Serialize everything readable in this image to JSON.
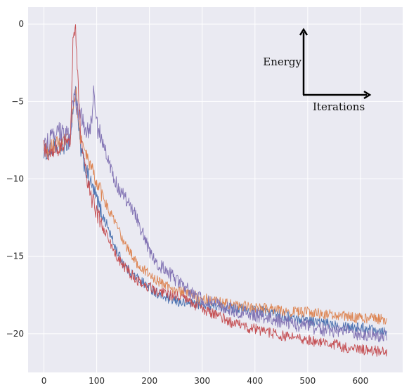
{
  "chart_data": {
    "type": "line",
    "title": "",
    "xlabel": "",
    "ylabel": "",
    "xlim": [
      -30,
      680
    ],
    "ylim": [
      -22.5,
      1.1
    ],
    "xticks": [
      0,
      100,
      200,
      300,
      400,
      500,
      600
    ],
    "yticks": [
      0,
      -5,
      -10,
      -15,
      -20
    ],
    "xtick_labels": [
      "0",
      "100",
      "200",
      "300",
      "400",
      "500",
      "600"
    ],
    "ytick_labels": [
      "0",
      "−5",
      "−10",
      "−15",
      "−20"
    ],
    "grid": true,
    "background": "#eaeaf2",
    "line_width": 0.9,
    "annotations": {
      "vertical_label": "Energy",
      "horizontal_label": "Iterations"
    },
    "series": [
      {
        "color": "#4c72b0",
        "noise": 0.35,
        "x": [
          0,
          10,
          20,
          30,
          40,
          50,
          55,
          60,
          65,
          70,
          80,
          90,
          100,
          110,
          120,
          130,
          140,
          150,
          160,
          180,
          200,
          220,
          240,
          260,
          280,
          300,
          325,
          350,
          375,
          400,
          425,
          450,
          475,
          500,
          525,
          550,
          575,
          600,
          625,
          650
        ],
        "y": [
          -8.2,
          -8.3,
          -7.9,
          -8.1,
          -7.8,
          -7.5,
          -5.6,
          -3.8,
          -6.5,
          -8.2,
          -9.5,
          -10.4,
          -11.3,
          -12.3,
          -13.0,
          -14.0,
          -14.8,
          -15.4,
          -15.9,
          -16.5,
          -17.0,
          -17.5,
          -17.8,
          -18.0,
          -18.0,
          -18.1,
          -18.2,
          -18.3,
          -18.4,
          -18.5,
          -18.6,
          -18.8,
          -19.0,
          -19.1,
          -19.3,
          -19.4,
          -19.5,
          -19.6,
          -19.7,
          -19.8
        ]
      },
      {
        "color": "#dd8452",
        "noise": 0.35,
        "x": [
          0,
          10,
          20,
          30,
          40,
          50,
          55,
          60,
          65,
          70,
          80,
          90,
          100,
          110,
          120,
          130,
          140,
          150,
          160,
          180,
          200,
          220,
          240,
          260,
          280,
          300,
          325,
          350,
          375,
          400,
          425,
          450,
          475,
          500,
          525,
          550,
          575,
          600,
          625,
          650
        ],
        "y": [
          -8.0,
          -8.2,
          -7.7,
          -7.9,
          -7.6,
          -7.4,
          -5.2,
          -4.2,
          -6.0,
          -7.5,
          -8.5,
          -9.3,
          -10.3,
          -11.0,
          -11.8,
          -12.5,
          -13.2,
          -14.0,
          -14.6,
          -15.6,
          -16.2,
          -16.7,
          -17.0,
          -17.3,
          -17.5,
          -17.7,
          -17.9,
          -18.1,
          -18.2,
          -18.3,
          -18.4,
          -18.5,
          -18.6,
          -18.6,
          -18.7,
          -18.8,
          -18.9,
          -19.0,
          -19.0,
          -19.1
        ]
      },
      {
        "color": "#8172b3",
        "noise": 0.45,
        "x": [
          0,
          10,
          20,
          30,
          40,
          50,
          55,
          60,
          70,
          80,
          90,
          95,
          100,
          110,
          120,
          130,
          140,
          150,
          160,
          170,
          180,
          190,
          200,
          220,
          240,
          260,
          280,
          300,
          325,
          350,
          375,
          400,
          425,
          450,
          475,
          500,
          525,
          550,
          575,
          600,
          625,
          650
        ],
        "y": [
          -7.8,
          -7.6,
          -7.3,
          -7.0,
          -7.2,
          -7.5,
          -4.5,
          -5.0,
          -6.0,
          -6.8,
          -6.5,
          -4.2,
          -6.5,
          -7.5,
          -8.5,
          -9.8,
          -10.5,
          -11.0,
          -11.5,
          -12.0,
          -12.8,
          -13.8,
          -14.7,
          -15.6,
          -16.2,
          -16.8,
          -17.3,
          -17.8,
          -18.1,
          -18.4,
          -18.6,
          -18.8,
          -19.0,
          -19.2,
          -19.4,
          -19.5,
          -19.7,
          -19.8,
          -19.9,
          -20.0,
          -20.1,
          -20.2
        ]
      },
      {
        "color": "#c44e52",
        "noise": 0.35,
        "x": [
          0,
          10,
          20,
          30,
          40,
          50,
          55,
          60,
          63,
          66,
          70,
          80,
          90,
          100,
          110,
          120,
          130,
          140,
          150,
          160,
          180,
          200,
          220,
          240,
          260,
          280,
          300,
          325,
          350,
          375,
          400,
          425,
          450,
          475,
          500,
          525,
          550,
          575,
          600,
          625,
          650
        ],
        "y": [
          -8.0,
          -8.3,
          -8.1,
          -7.9,
          -7.7,
          -7.5,
          -1.2,
          -0.3,
          -3.0,
          -4.5,
          -7.5,
          -9.8,
          -11.2,
          -12.2,
          -13.0,
          -13.7,
          -14.5,
          -15.1,
          -15.6,
          -16.0,
          -16.6,
          -17.0,
          -17.3,
          -17.5,
          -17.7,
          -18.0,
          -18.4,
          -18.8,
          -19.2,
          -19.5,
          -19.7,
          -19.9,
          -20.1,
          -20.3,
          -20.4,
          -20.6,
          -20.7,
          -20.9,
          -21.0,
          -21.1,
          -21.2
        ]
      }
    ]
  }
}
